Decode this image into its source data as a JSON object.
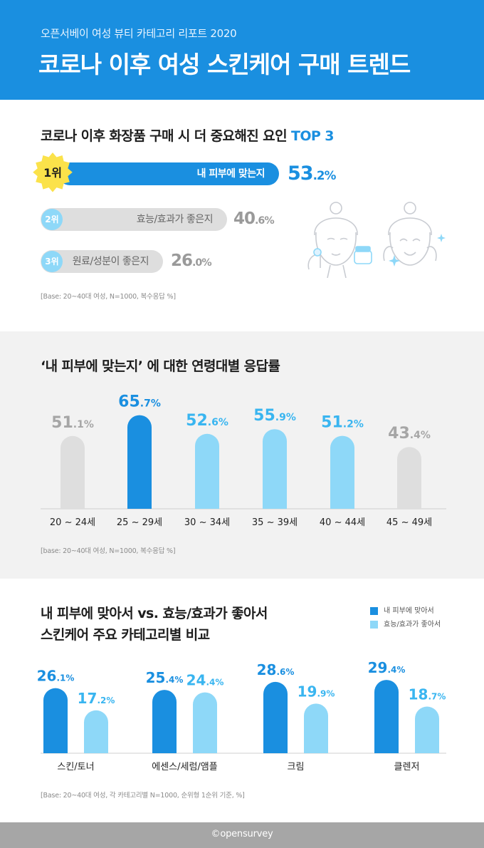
{
  "header": {
    "subtitle": "오픈서베이 여성 뷰티 카테고리 리포트 2020",
    "title": "코로나 이후 여성 스킨케어 구매 트렌드"
  },
  "section1": {
    "title_main": "코로나 이후 화장품 구매 시 더 중요해진 요인 ",
    "title_accent": "TOP 3",
    "base": "[Base: 20~40대 여성, N=1000, 복수응답 %]",
    "ranks": [
      {
        "rank": "1위",
        "label": "내 피부에 맞는지",
        "value_int": "53",
        "value_dec": ".2%"
      },
      {
        "rank": "2위",
        "label": "효능/효과가 좋은지",
        "value_int": "40",
        "value_dec": ".6%"
      },
      {
        "rank": "3위",
        "label": "원료/성분이 좋은지",
        "value_int": "26",
        "value_dec": ".0%"
      }
    ]
  },
  "section2": {
    "title": "‘내 피부에 맞는지’ 에 대한 연령대별 응답률",
    "base": "[base: 20~40대 여성, N=1000, 복수응답 %]"
  },
  "section3": {
    "title_line1": "내 피부에 맞아서 vs. 효능/효과가 좋아서",
    "title_line2": "스킨케어 주요 카테고리별 비교",
    "base": "[Base: 20~40대 여성, 각 카테고리별 N=1000, 순위형 1순위 기준, %]"
  },
  "footer": {
    "brand": "opensurvey"
  },
  "colors": {
    "primary": "#1a8fe0",
    "light": "#8ed8f8",
    "gray": "#dedede",
    "rank_badge": "#fbe24a"
  },
  "chart_data": [
    {
      "type": "bar",
      "title": "코로나 이후 화장품 구매 시 더 중요해진 요인 TOP 3",
      "orientation": "horizontal",
      "categories": [
        "내 피부에 맞는지",
        "효능/효과가 좋은지",
        "원료/성분이 좋은지"
      ],
      "values": [
        53.2,
        40.6,
        26.0
      ],
      "unit": "%"
    },
    {
      "type": "bar",
      "title": "‘내 피부에 맞는지’ 에 대한 연령대별 응답률",
      "categories": [
        "20 ~ 24세",
        "25 ~ 29세",
        "30 ~ 34세",
        "35 ~ 39세",
        "40 ~ 44세",
        "45 ~ 49세"
      ],
      "values": [
        51.1,
        65.7,
        52.6,
        55.9,
        51.2,
        43.4
      ],
      "value_labels": [
        "51.1%",
        "65.7%",
        "52.6%",
        "55.9%",
        "51.2%",
        "43.4%"
      ],
      "bar_colors": [
        "#dedede",
        "#1a8fe0",
        "#8ed8f8",
        "#8ed8f8",
        "#8ed8f8",
        "#dedede"
      ],
      "label_colors": [
        "#a6a6a6",
        "#1a8fe0",
        "#39b5f0",
        "#39b5f0",
        "#39b5f0",
        "#a6a6a6"
      ],
      "unit": "%"
    },
    {
      "type": "bar",
      "title": "내 피부에 맞아서 vs. 효능/효과가 좋아서 스킨케어 주요 카테고리별 비교",
      "categories": [
        "스킨/토너",
        "에센스/세럼/앰플",
        "크림",
        "클렌저"
      ],
      "series": [
        {
          "name": "내 피부에 맞아서",
          "values": [
            26.1,
            25.4,
            28.6,
            29.4
          ],
          "value_labels": [
            "26.1%",
            "25.4%",
            "28.6%",
            "29.4%"
          ],
          "color": "#1a8fe0"
        },
        {
          "name": "효능/효과가 좋아서",
          "values": [
            17.2,
            24.4,
            19.9,
            18.7
          ],
          "value_labels": [
            "17.2%",
            "24.4%",
            "19.9%",
            "18.7%"
          ],
          "color": "#8ed8f8"
        }
      ],
      "legend": "top-right",
      "unit": "%"
    }
  ]
}
